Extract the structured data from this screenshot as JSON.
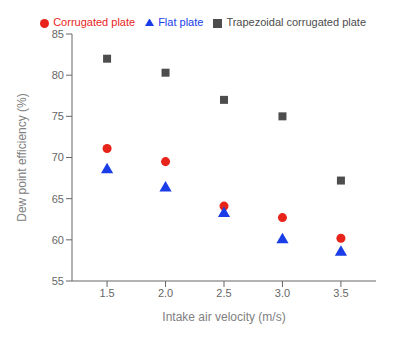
{
  "chart_data": {
    "type": "scatter",
    "xlabel": "Intake air velocity (m/s)",
    "ylabel": "Dew point efficiency (%)",
    "x": [
      1.5,
      2.0,
      2.5,
      3.0,
      3.5
    ],
    "series": [
      {
        "name": "Trapezoidal corrugated plate",
        "color": "#4d4d4d",
        "marker": "square",
        "values": [
          82,
          80.3,
          77,
          75,
          67.2
        ]
      },
      {
        "name": "Corrugated plate",
        "color": "#e8241a",
        "marker": "circle",
        "values": [
          71.1,
          69.5,
          64.1,
          62.7,
          60.2
        ]
      },
      {
        "name": "Flat plate",
        "color": "#1a3de8",
        "marker": "triangle",
        "values": [
          68.5,
          66.3,
          63.2,
          60.0,
          58.5
        ]
      }
    ],
    "xlim": [
      1.2,
      3.8
    ],
    "ylim": [
      55,
      85
    ],
    "xticks": [
      1.5,
      {
        "value": 2.0,
        "label": "2.0"
      },
      2.5,
      {
        "value": 3.0,
        "label": "3.0"
      },
      3.5
    ],
    "yticks": [
      55,
      60,
      65,
      70,
      75,
      80,
      85
    ],
    "grid": false,
    "legend": "upper right"
  }
}
